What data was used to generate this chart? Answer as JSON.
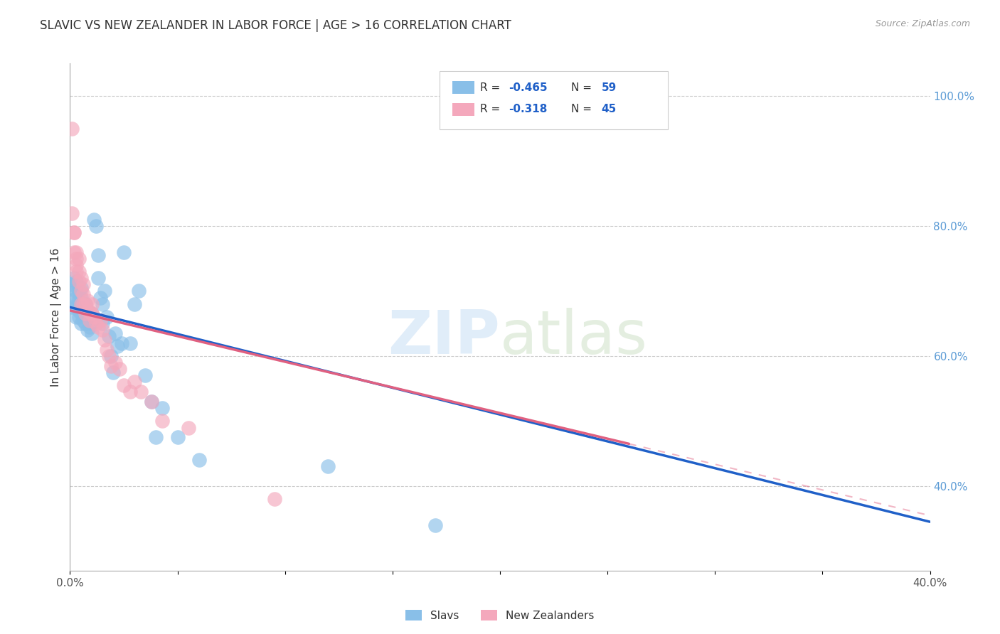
{
  "title": "SLAVIC VS NEW ZEALANDER IN LABOR FORCE | AGE > 16 CORRELATION CHART",
  "source": "Source: ZipAtlas.com",
  "ylabel": "In Labor Force | Age > 16",
  "xlim": [
    0.0,
    0.4
  ],
  "ylim": [
    0.27,
    1.05
  ],
  "y_ticks_right": [
    0.4,
    0.6,
    0.8,
    1.0
  ],
  "y_tick_labels_right": [
    "40.0%",
    "60.0%",
    "80.0%",
    "100.0%"
  ],
  "slavs_color": "#89bfe8",
  "nz_color": "#f4a8bc",
  "slavs_R": -0.465,
  "slavs_N": 59,
  "nz_R": -0.318,
  "nz_N": 45,
  "slavs_line_color": "#2060c8",
  "nz_line_color": "#e06080",
  "legend_text_color": "#2060c8",
  "slavs_x": [
    0.001,
    0.001,
    0.002,
    0.002,
    0.002,
    0.003,
    0.003,
    0.003,
    0.003,
    0.003,
    0.004,
    0.004,
    0.004,
    0.004,
    0.005,
    0.005,
    0.005,
    0.005,
    0.005,
    0.006,
    0.006,
    0.006,
    0.007,
    0.007,
    0.007,
    0.008,
    0.008,
    0.009,
    0.009,
    0.01,
    0.01,
    0.01,
    0.011,
    0.012,
    0.013,
    0.013,
    0.014,
    0.015,
    0.015,
    0.016,
    0.017,
    0.018,
    0.019,
    0.02,
    0.021,
    0.022,
    0.024,
    0.025,
    0.028,
    0.03,
    0.032,
    0.035,
    0.038,
    0.04,
    0.043,
    0.05,
    0.06,
    0.12,
    0.17
  ],
  "slavs_y": [
    0.675,
    0.71,
    0.68,
    0.7,
    0.72,
    0.66,
    0.675,
    0.69,
    0.7,
    0.715,
    0.66,
    0.67,
    0.685,
    0.7,
    0.65,
    0.665,
    0.675,
    0.69,
    0.705,
    0.655,
    0.668,
    0.68,
    0.65,
    0.665,
    0.68,
    0.64,
    0.66,
    0.645,
    0.66,
    0.635,
    0.65,
    0.665,
    0.81,
    0.8,
    0.755,
    0.72,
    0.69,
    0.68,
    0.65,
    0.7,
    0.66,
    0.63,
    0.6,
    0.575,
    0.635,
    0.615,
    0.62,
    0.76,
    0.62,
    0.68,
    0.7,
    0.57,
    0.53,
    0.475,
    0.52,
    0.475,
    0.44,
    0.43,
    0.34
  ],
  "nz_x": [
    0.001,
    0.001,
    0.002,
    0.002,
    0.002,
    0.003,
    0.003,
    0.003,
    0.003,
    0.004,
    0.004,
    0.004,
    0.005,
    0.005,
    0.005,
    0.006,
    0.006,
    0.006,
    0.007,
    0.007,
    0.008,
    0.008,
    0.009,
    0.009,
    0.01,
    0.01,
    0.011,
    0.012,
    0.013,
    0.014,
    0.015,
    0.016,
    0.017,
    0.018,
    0.019,
    0.021,
    0.023,
    0.025,
    0.028,
    0.03,
    0.033,
    0.038,
    0.043,
    0.055,
    0.095
  ],
  "nz_y": [
    0.95,
    0.82,
    0.79,
    0.79,
    0.76,
    0.75,
    0.74,
    0.73,
    0.76,
    0.75,
    0.73,
    0.715,
    0.68,
    0.7,
    0.72,
    0.68,
    0.695,
    0.71,
    0.665,
    0.68,
    0.67,
    0.685,
    0.655,
    0.668,
    0.665,
    0.68,
    0.66,
    0.65,
    0.645,
    0.655,
    0.64,
    0.625,
    0.61,
    0.6,
    0.585,
    0.59,
    0.58,
    0.555,
    0.545,
    0.56,
    0.545,
    0.53,
    0.5,
    0.49,
    0.38
  ],
  "slavs_line_x0": 0.0,
  "slavs_line_y0": 0.675,
  "slavs_line_x1": 0.4,
  "slavs_line_y1": 0.345,
  "nz_line_x0": 0.0,
  "nz_line_y0": 0.67,
  "nz_line_x1": 0.26,
  "nz_line_y1": 0.465
}
